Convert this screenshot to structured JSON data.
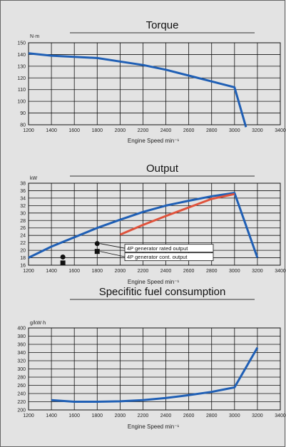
{
  "chart_data": [
    {
      "type": "line",
      "title": "Torque",
      "ylabel": "N·m",
      "xlabel": "Engine Speed min⁻¹",
      "xlim": [
        1200,
        3400
      ],
      "ylim": [
        80,
        150
      ],
      "xticks": [
        "1200",
        "1400",
        "1600",
        "1800",
        "2000",
        "2200",
        "2400",
        "2600",
        "2800",
        "3000",
        "3200",
        "3400"
      ],
      "yticks": [
        "150",
        "140",
        "130",
        "120",
        "110",
        "100",
        "90",
        "80"
      ],
      "grid": true,
      "series": [
        {
          "color": "#1f5fb5",
          "x": [
            1200,
            1400,
            1600,
            1800,
            2000,
            2200,
            2400,
            2600,
            2800,
            3000,
            3100
          ],
          "y": [
            141,
            139,
            138,
            137,
            134,
            131,
            127,
            122,
            117,
            112,
            78
          ]
        }
      ]
    },
    {
      "type": "line",
      "title": "Output",
      "ylabel": "kW",
      "xlabel": "Engine Speed min⁻¹",
      "xlim": [
        1200,
        3400
      ],
      "ylim": [
        16,
        38
      ],
      "xticks": [
        "1200",
        "1400",
        "1600",
        "1800",
        "2000",
        "2200",
        "2400",
        "2600",
        "2800",
        "3000",
        "3200",
        "3400"
      ],
      "yticks": [
        "38",
        "36",
        "34",
        "32",
        "30",
        "28",
        "26",
        "24",
        "22",
        "20",
        "18",
        "16"
      ],
      "grid": true,
      "series": [
        {
          "color": "#1f5fb5",
          "x": [
            1200,
            1400,
            1600,
            1800,
            2000,
            2200,
            2400,
            2600,
            2800,
            3000,
            3200
          ],
          "y": [
            18,
            21,
            23.5,
            26,
            28.2,
            30.3,
            32,
            33.3,
            34.5,
            35.4,
            18
          ]
        },
        {
          "color": "#e0533c",
          "x": [
            2000,
            2200,
            2400,
            2600,
            2800,
            3000
          ],
          "y": [
            24.2,
            26.8,
            29.2,
            31.5,
            33.8,
            35.1
          ]
        }
      ],
      "markers": [
        {
          "shape": "circle",
          "x": 1500,
          "y": 18.2
        },
        {
          "shape": "square",
          "x": 1500,
          "y": 16.6
        },
        {
          "shape": "circle",
          "x": 1800,
          "y": 21.8,
          "label": "4P generator rated output"
        },
        {
          "shape": "square",
          "x": 1800,
          "y": 19.7,
          "label": "4P generator cont. output"
        }
      ]
    },
    {
      "type": "line",
      "title": "Specifitic fuel consumption",
      "ylabel": "g/kW·h",
      "xlabel": "Engine Speed min⁻¹",
      "xlim": [
        1200,
        3400
      ],
      "ylim": [
        200,
        400
      ],
      "xticks": [
        "1200",
        "1400",
        "1600",
        "1800",
        "2000",
        "2200",
        "2400",
        "2600",
        "2800",
        "3000",
        "3200",
        "3400"
      ],
      "yticks": [
        "400",
        "380",
        "360",
        "340",
        "320",
        "300",
        "280",
        "260",
        "240",
        "220",
        "200"
      ],
      "grid": true,
      "series": [
        {
          "color": "#1f5fb5",
          "x": [
            1400,
            1600,
            1800,
            2000,
            2200,
            2400,
            2600,
            2800,
            3000,
            3200
          ],
          "y": [
            224,
            220,
            220,
            221,
            224,
            229,
            236,
            244,
            255,
            352
          ]
        }
      ]
    }
  ],
  "colors": {
    "background": "#e3e3e3",
    "grid": "#111111",
    "primary": "#1f5fb5",
    "secondary": "#e0533c"
  }
}
